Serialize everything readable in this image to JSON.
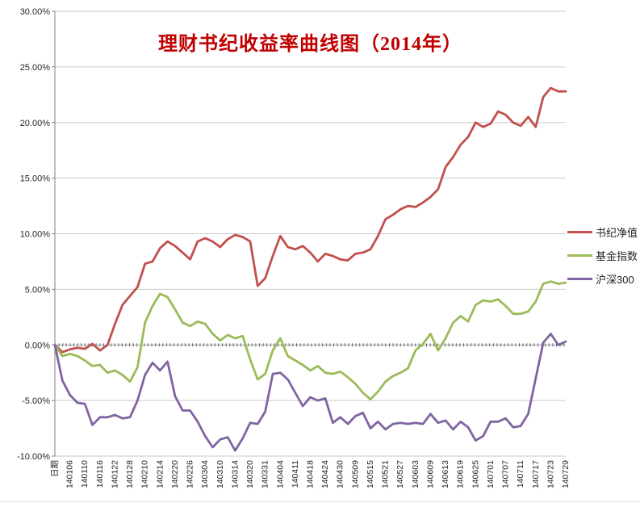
{
  "title": "理财书纪收益率曲线图（2014年）",
  "title_color": "#c00000",
  "chart_data": {
    "type": "line",
    "categories": [
      "日期",
      "140106",
      "140110",
      "140116",
      "140122",
      "140128",
      "140210",
      "140214",
      "140220",
      "140226",
      "140304",
      "140310",
      "140314",
      "140320",
      "140331",
      "140404",
      "140411",
      "140418",
      "140424",
      "140430",
      "140509",
      "140515",
      "140521",
      "140527",
      "140603",
      "140609",
      "140613",
      "140619",
      "140625",
      "140701",
      "140707",
      "140711",
      "140717",
      "140723",
      "140729"
    ],
    "x_axis": {
      "name": "日期",
      "label_rotation": -90,
      "points_per_category": 2
    },
    "y_axis": {
      "min": -10,
      "max": 30,
      "step": 5,
      "format": "percent",
      "tick_labels": [
        "30.00%",
        "25.00%",
        "20.00%",
        "15.00%",
        "10.00%",
        "5.00%",
        "0.00%",
        "-5.00%",
        "-10.00%"
      ]
    },
    "grid": true,
    "legend_position": "right",
    "series": [
      {
        "name": "书纪净值",
        "color": "#c0504d",
        "values": [
          0,
          -0.65,
          -0.4,
          -0.25,
          -0.35,
          0.1,
          -0.5,
          0.0,
          1.9,
          3.6,
          4.4,
          5.2,
          7.3,
          7.5,
          8.7,
          9.3,
          8.9,
          8.3,
          7.7,
          9.3,
          9.6,
          9.3,
          8.8,
          9.5,
          9.9,
          9.7,
          9.3,
          5.3,
          6.0,
          8.0,
          9.8,
          8.8,
          8.6,
          8.9,
          8.3,
          7.5,
          8.2,
          8.0,
          7.7,
          7.6,
          8.2,
          8.3,
          8.6,
          9.8,
          11.3,
          11.7,
          12.2,
          12.5,
          12.4,
          12.8,
          13.3,
          14.0,
          16.0,
          16.9,
          18.0,
          18.7,
          20.0,
          19.6,
          19.9,
          21.0,
          20.7,
          20.0,
          19.7,
          20.5,
          19.6,
          22.3,
          23.1,
          22.8,
          22.8
        ]
      },
      {
        "name": "基金指数",
        "color": "#9bbb59",
        "values": [
          0,
          -1.0,
          -0.8,
          -1.0,
          -1.4,
          -1.9,
          -1.8,
          -2.5,
          -2.3,
          -2.7,
          -3.3,
          -2.0,
          2.0,
          3.5,
          4.6,
          4.3,
          3.2,
          2.0,
          1.7,
          2.1,
          1.9,
          1.0,
          0.4,
          0.9,
          0.6,
          0.8,
          -1.3,
          -3.1,
          -2.6,
          -0.5,
          0.6,
          -1.0,
          -1.4,
          -1.8,
          -2.3,
          -1.9,
          -2.5,
          -2.6,
          -2.4,
          -2.9,
          -3.5,
          -4.3,
          -4.9,
          -4.2,
          -3.3,
          -2.8,
          -2.5,
          -2.1,
          -0.5,
          0.1,
          1.0,
          -0.5,
          0.6,
          2.0,
          2.6,
          2.1,
          3.6,
          4.0,
          3.9,
          4.1,
          3.5,
          2.8,
          2.8,
          3.0,
          3.9,
          5.5,
          5.7,
          5.5,
          5.6
        ]
      },
      {
        "name": "沪深300",
        "color": "#8064a2",
        "values": [
          0,
          -3.2,
          -4.5,
          -5.2,
          -5.3,
          -7.2,
          -6.5,
          -6.5,
          -6.3,
          -6.6,
          -6.5,
          -5.0,
          -2.7,
          -1.6,
          -2.3,
          -1.5,
          -4.6,
          -5.9,
          -5.9,
          -6.9,
          -8.2,
          -9.2,
          -8.5,
          -8.3,
          -9.5,
          -8.4,
          -7.0,
          -7.1,
          -6.0,
          -2.6,
          -2.5,
          -3.1,
          -4.3,
          -5.5,
          -4.7,
          -5.0,
          -4.8,
          -7.0,
          -6.5,
          -7.1,
          -6.4,
          -6.1,
          -7.5,
          -6.9,
          -7.6,
          -7.1,
          -7.0,
          -7.1,
          -7.0,
          -7.1,
          -6.2,
          -7.0,
          -6.8,
          -7.6,
          -6.9,
          -7.4,
          -8.6,
          -8.2,
          -6.9,
          -6.9,
          -6.6,
          -7.4,
          -7.3,
          -6.2,
          -3.0,
          0.2,
          1.0,
          0.0,
          0.3
        ]
      }
    ]
  }
}
